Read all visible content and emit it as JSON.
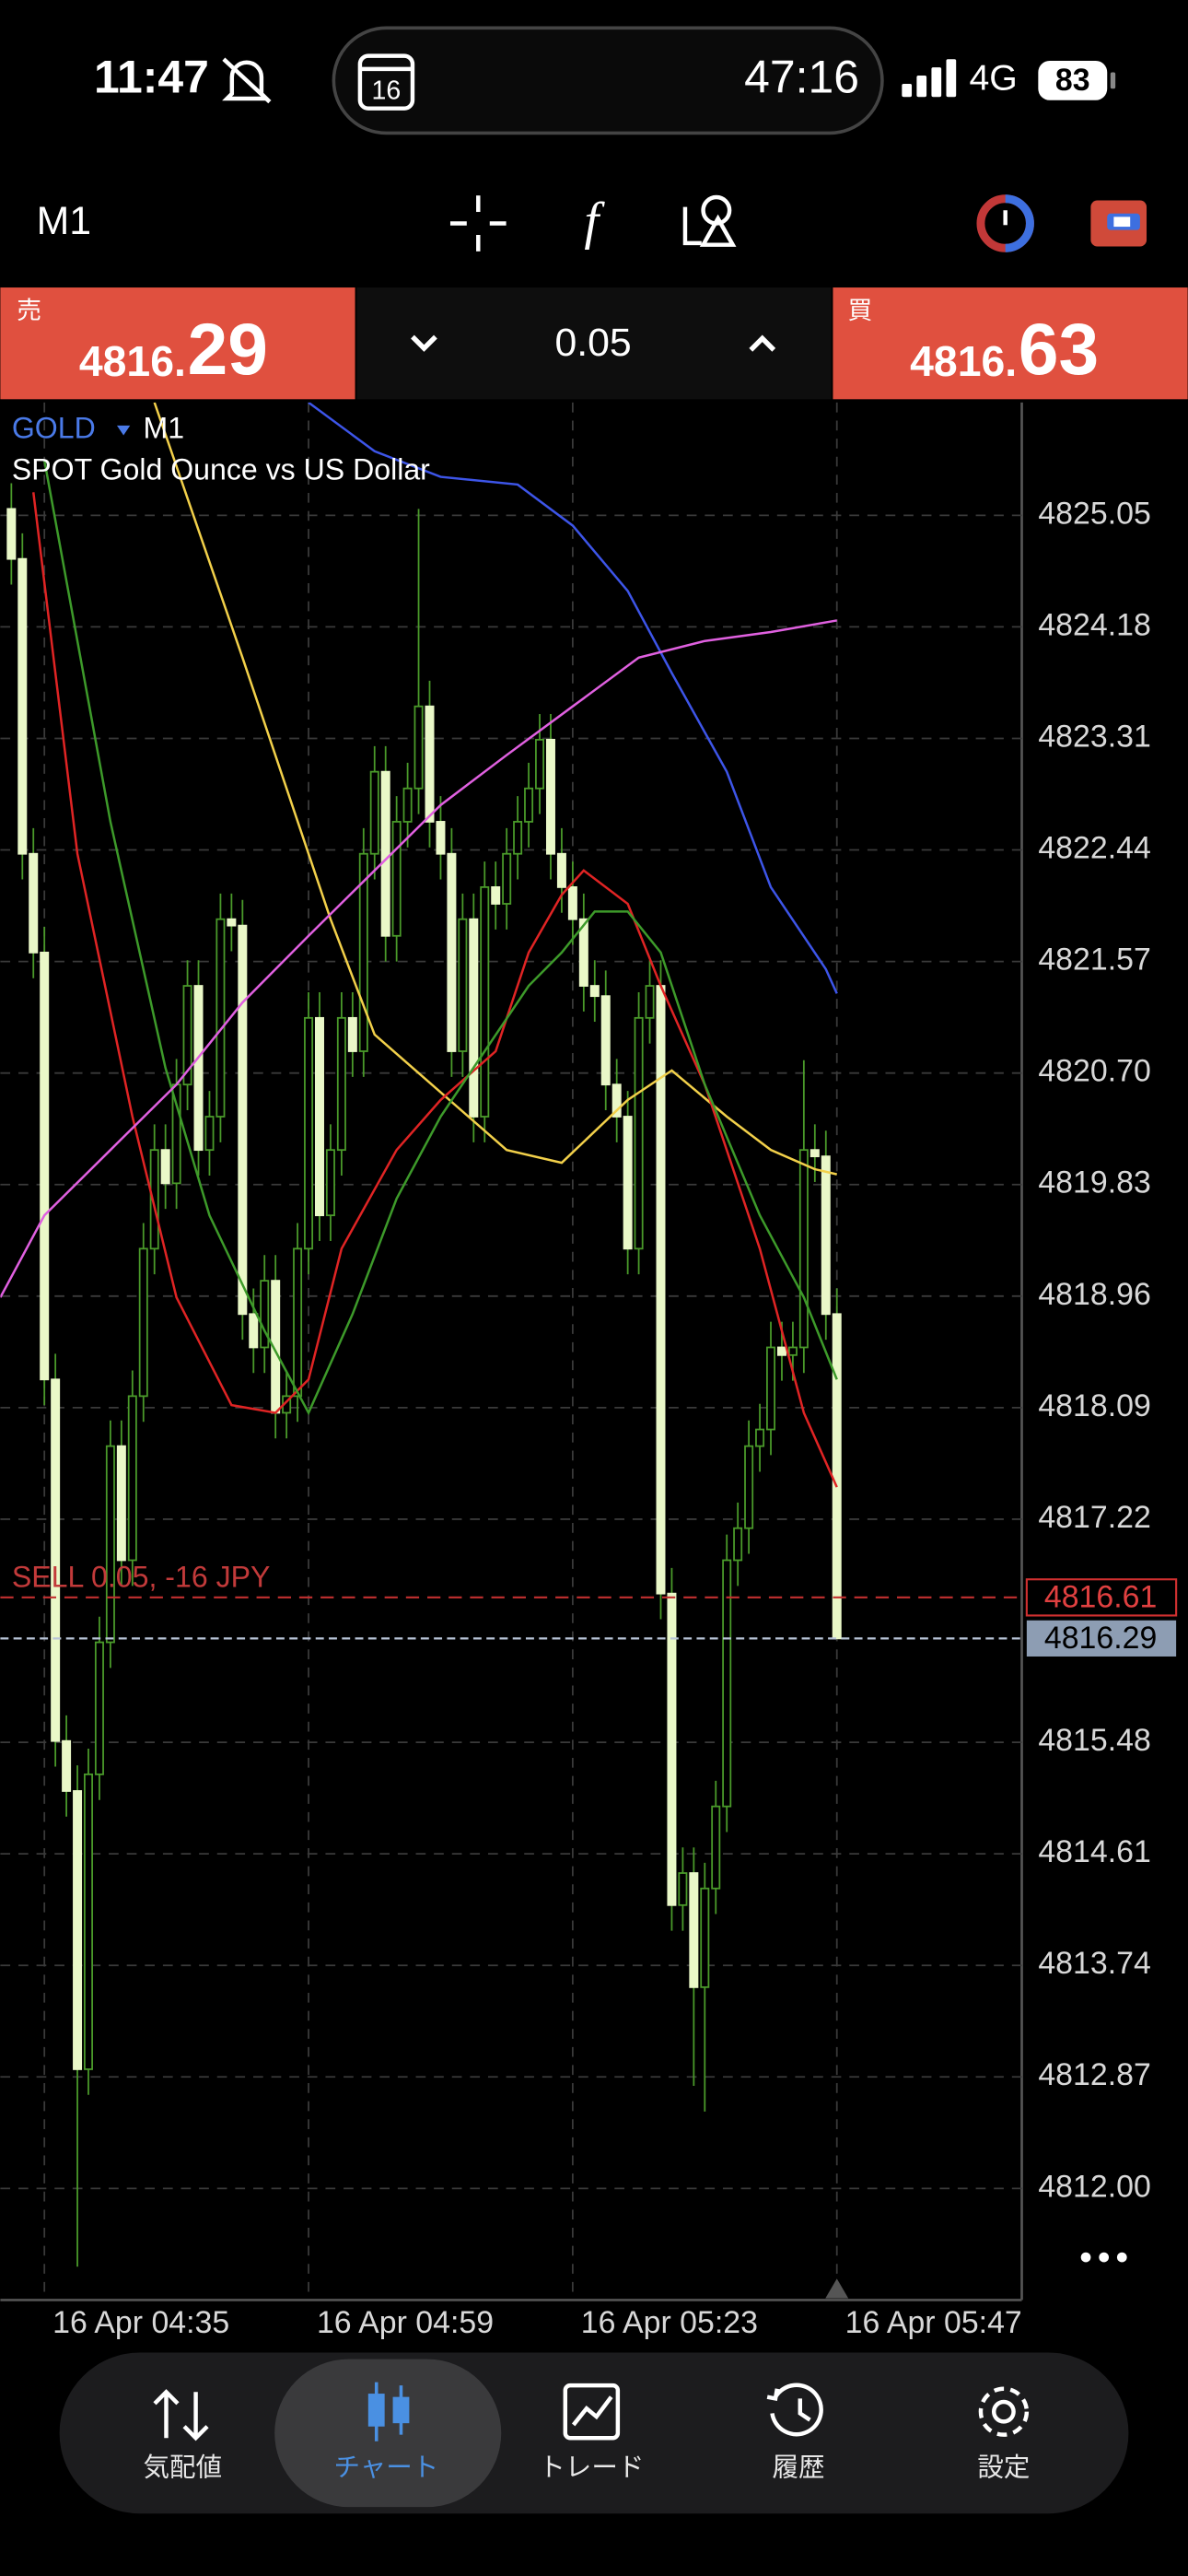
{
  "status_bar": {
    "time": "11:47",
    "timer": "47:16",
    "network": "4G",
    "battery": "83"
  },
  "toolbar": {
    "timeframe": "M1"
  },
  "trade_panel": {
    "sell": {
      "label": "売",
      "price_main": "4816.",
      "price_big": "29"
    },
    "volume": "0.05",
    "buy": {
      "label": "買",
      "price_main": "4816.",
      "price_big": "63"
    }
  },
  "chart_data": {
    "type": "candlestick",
    "symbol": "GOLD",
    "timeframe": "M1",
    "description": "SPOT Gold Ounce vs US Dollar",
    "xlim": [
      -1,
      91.8
    ],
    "xticks": [
      {
        "value": 3,
        "label": "16 Apr 04:35"
      },
      {
        "value": 27,
        "label": "16 Apr 04:59"
      },
      {
        "value": 51,
        "label": "16 Apr 05:23"
      },
      {
        "value": 75,
        "label": "16 Apr 05:47"
      }
    ],
    "ylim": [
      4811.13,
      4825.93
    ],
    "yticks": [
      4825.05,
      4824.18,
      4823.31,
      4822.44,
      4821.57,
      {
        "value": 4820.7,
        "label": "4820.70"
      },
      4819.83,
      4818.96,
      4818.09,
      4817.22,
      4815.48,
      4814.61,
      4813.74,
      4812.87,
      {
        "value": 4812,
        "label": "4812.00"
      }
    ],
    "grid": true,
    "up_color": "#4a9a2a",
    "down_color": "#eaf8c8",
    "ohlc": [
      [
        4825.1,
        4825.3,
        4824.51,
        4824.71
      ],
      [
        4824.71,
        4824.91,
        4822.21,
        4822.41
      ],
      [
        4822.41,
        4822.61,
        4821.44,
        4821.64
      ],
      [
        4821.64,
        4821.84,
        4818.11,
        4818.31
      ],
      [
        4818.31,
        4818.51,
        4815.29,
        4815.49
      ],
      [
        4815.49,
        4815.69,
        4814.9,
        4815.1
      ],
      [
        4815.1,
        4815.3,
        4811.39,
        4812.93
      ],
      [
        4812.93,
        4815.43,
        4812.73,
        4815.23
      ],
      [
        4815.23,
        4816.46,
        4815.03,
        4816.26
      ],
      [
        4816.26,
        4817.99,
        4816.06,
        4817.79
      ],
      [
        4817.79,
        4817.99,
        4816.7,
        4816.9
      ],
      [
        4816.9,
        4818.38,
        4816.7,
        4818.18
      ],
      [
        4818.18,
        4819.53,
        4817.98,
        4819.33
      ],
      [
        4819.33,
        4820.3,
        4819.13,
        4820.1
      ],
      [
        4820.1,
        4820.3,
        4819.64,
        4819.84
      ],
      [
        4819.84,
        4820.81,
        4819.64,
        4820.61
      ],
      [
        4820.61,
        4821.58,
        4820.41,
        4821.38
      ],
      [
        4821.38,
        4821.58,
        4819.9,
        4820.1
      ],
      [
        4820.1,
        4820.56,
        4819.9,
        4820.36
      ],
      [
        4820.36,
        4822.1,
        4820.16,
        4821.9
      ],
      [
        4821.9,
        4822.1,
        4821.65,
        4821.85
      ],
      [
        4821.85,
        4822.05,
        4818.62,
        4818.82
      ],
      [
        4818.82,
        4819.02,
        4818.36,
        4818.56
      ],
      [
        4818.56,
        4819.28,
        4818.36,
        4819.08
      ],
      [
        4819.08,
        4819.28,
        4817.85,
        4818.05
      ],
      [
        4818.05,
        4818.38,
        4817.85,
        4818.18
      ],
      [
        4818.18,
        4819.53,
        4817.98,
        4819.33
      ],
      [
        4819.33,
        4821.33,
        4819.13,
        4821.13
      ],
      [
        4821.13,
        4821.33,
        4819.39,
        4819.59
      ],
      [
        4819.59,
        4820.3,
        4819.39,
        4820.1
      ],
      [
        4820.1,
        4821.33,
        4819.9,
        4821.13
      ],
      [
        4821.13,
        4821.33,
        4820.67,
        4820.87
      ],
      [
        4820.87,
        4822.61,
        4820.67,
        4822.41
      ],
      [
        4822.41,
        4823.25,
        4822.21,
        4823.05
      ],
      [
        4823.05,
        4823.25,
        4821.57,
        4821.77
      ],
      [
        4821.77,
        4822.86,
        4821.57,
        4822.66
      ],
      [
        4822.66,
        4823.12,
        4822.46,
        4822.92
      ],
      [
        4822.92,
        4825.1,
        4822.72,
        4823.56
      ],
      [
        4823.56,
        4823.76,
        4822.46,
        4822.66
      ],
      [
        4822.66,
        4822.86,
        4822.21,
        4822.41
      ],
      [
        4822.41,
        4822.61,
        4820.67,
        4820.87
      ],
      [
        4820.87,
        4822.1,
        4820.67,
        4821.9
      ],
      [
        4821.9,
        4822.1,
        4820.16,
        4820.36
      ],
      [
        4820.36,
        4822.35,
        4820.16,
        4822.15
      ],
      [
        4822.15,
        4822.35,
        4821.82,
        4822.02
      ],
      [
        4822.02,
        4822.61,
        4821.82,
        4822.41
      ],
      [
        4822.41,
        4822.86,
        4822.21,
        4822.66
      ],
      [
        4822.66,
        4823.12,
        4822.46,
        4822.92
      ],
      [
        4822.92,
        4823.5,
        4822.72,
        4823.3
      ],
      [
        4823.3,
        4823.5,
        4822.21,
        4822.41
      ],
      [
        4822.41,
        4822.61,
        4821.95,
        4822.15
      ],
      [
        4822.15,
        4822.35,
        4821.7,
        4821.9
      ],
      [
        4821.9,
        4822.1,
        4821.18,
        4821.38
      ],
      [
        4821.38,
        4821.58,
        4821.1,
        4821.3
      ],
      [
        4821.3,
        4821.5,
        4820.41,
        4820.61
      ],
      [
        4820.61,
        4820.81,
        4820.16,
        4820.36
      ],
      [
        4820.36,
        4820.56,
        4819.13,
        4819.33
      ],
      [
        4819.33,
        4821.33,
        4819.13,
        4821.13
      ],
      [
        4821.13,
        4821.58,
        4820.93,
        4821.38
      ],
      [
        4821.38,
        4821.58,
        4816.44,
        4816.64
      ],
      [
        4816.64,
        4816.84,
        4814.01,
        4814.21
      ],
      [
        4814.21,
        4814.66,
        4814.01,
        4814.46
      ],
      [
        4814.46,
        4814.66,
        4812.8,
        4813.57
      ],
      [
        4813.57,
        4814.54,
        4812.6,
        4814.34
      ],
      [
        4814.34,
        4815.18,
        4814.14,
        4814.98
      ],
      [
        4814.98,
        4817.1,
        4814.78,
        4816.9
      ],
      [
        4816.9,
        4817.35,
        4816.7,
        4817.15
      ],
      [
        4817.15,
        4817.99,
        4816.95,
        4817.79
      ],
      [
        4817.79,
        4818.12,
        4817.59,
        4817.92
      ],
      [
        4817.92,
        4818.76,
        4817.72,
        4818.56
      ],
      [
        4818.56,
        4818.76,
        4818.3,
        4818.5
      ],
      [
        4818.5,
        4818.76,
        4818.3,
        4818.56
      ],
      [
        4818.56,
        4820.8,
        4818.36,
        4820.1
      ],
      [
        4820.1,
        4820.3,
        4819.85,
        4820.05
      ],
      [
        4820.05,
        4820.25,
        4818.62,
        4818.82
      ],
      [
        4818.82,
        4819.02,
        4816.29,
        4816.29
      ]
    ],
    "indicators": [
      {
        "color": "#f2d04a",
        "x": [
          13,
          21,
          29,
          33,
          39,
          45,
          50,
          56,
          60,
          65,
          69,
          73,
          75
        ],
        "values": [
          4825.93,
          4823.94,
          4821.9,
          4821.0,
          4820.55,
          4820.1,
          4820.0,
          4820.49,
          4820.72,
          4820.36,
          4820.1,
          4819.95,
          4819.91
        ]
      },
      {
        "color": "#e02424",
        "x": [
          2,
          6,
          11,
          15,
          20,
          24,
          27,
          30,
          35,
          39,
          44,
          47,
          50,
          52,
          56,
          59,
          63,
          68,
          72,
          75
        ],
        "values": [
          4825.23,
          4822.41,
          4820.36,
          4818.95,
          4818.11,
          4818.05,
          4818.31,
          4819.33,
          4820.1,
          4820.49,
          4820.87,
          4821.64,
          4822.09,
          4822.28,
          4822.02,
          4821.38,
          4820.61,
          4819.33,
          4818.05,
          4817.47
        ]
      },
      {
        "color": "#3d9a2a",
        "x": [
          3,
          9,
          14,
          18,
          23,
          27,
          31,
          35,
          39,
          43,
          47,
          50,
          53,
          56,
          59,
          63,
          68,
          72,
          75
        ],
        "values": [
          4825.48,
          4822.66,
          4820.74,
          4819.59,
          4818.69,
          4818.05,
          4818.82,
          4819.72,
          4820.36,
          4820.87,
          4821.38,
          4821.64,
          4821.96,
          4821.96,
          4821.64,
          4820.61,
          4819.59,
          4818.95,
          4818.31
        ]
      },
      {
        "color": "#3d55e8",
        "x": [
          27,
          33,
          39,
          46,
          51,
          56,
          60,
          65,
          69,
          74,
          75
        ],
        "values": [
          4825.93,
          4825.55,
          4825.35,
          4825.29,
          4824.97,
          4824.46,
          4823.82,
          4823.05,
          4822.15,
          4821.51,
          4821.32
        ]
      },
      {
        "color": "#e060e0",
        "x": [
          -1,
          3,
          9,
          15,
          21,
          27,
          33,
          39,
          45,
          51,
          57,
          63,
          69,
          75
        ],
        "values": [
          4818.95,
          4819.59,
          4820.1,
          4820.61,
          4821.25,
          4821.77,
          4822.28,
          4822.79,
          4823.18,
          4823.56,
          4823.94,
          4824.07,
          4824.14,
          4824.23
        ]
      }
    ],
    "sell_order": {
      "text": "SELL 0.05, -16 JPY",
      "price": 4816.61
    },
    "last_price": 4816.29
  },
  "nav": [
    "気配値",
    "チャート",
    "トレード",
    "履歴",
    "設定"
  ]
}
